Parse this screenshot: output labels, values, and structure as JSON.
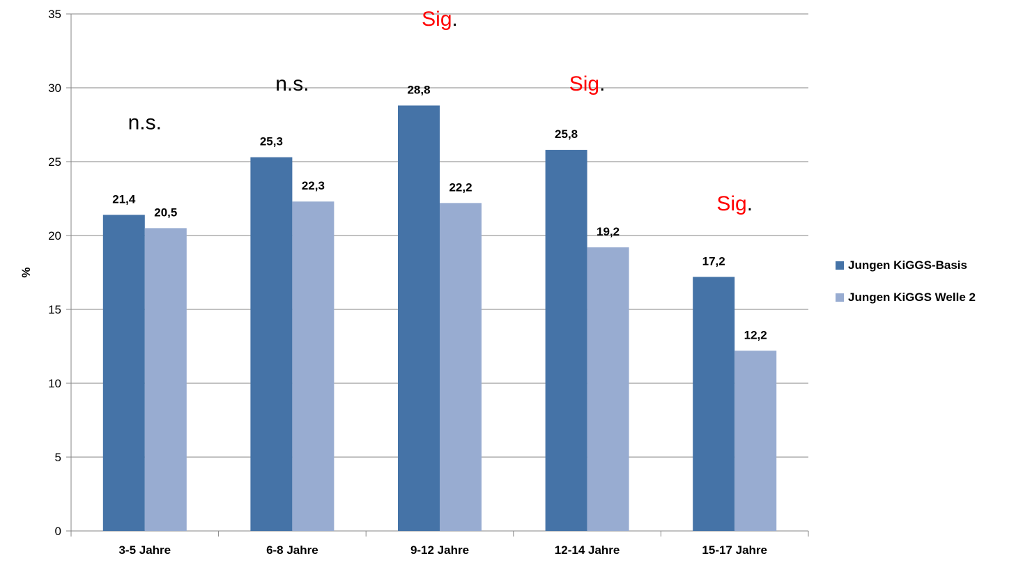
{
  "chart_data": {
    "type": "bar",
    "ylabel": "%",
    "ylim": [
      0,
      35
    ],
    "yticks": [
      0,
      5,
      10,
      15,
      20,
      25,
      30,
      35
    ],
    "grid": true,
    "legend_position": "right",
    "categories": [
      "3-5 Jahre",
      "6-8 Jahre",
      "9-12 Jahre",
      "12-14 Jahre",
      "15-17 Jahre"
    ],
    "series": [
      {
        "name": "Jungen KiGGS-Basis",
        "color": "#4573A7",
        "values": [
          21.4,
          25.3,
          28.8,
          25.8,
          17.2
        ],
        "labels": [
          "21,4",
          "25,3",
          "28,8",
          "25,8",
          "17,2"
        ]
      },
      {
        "name": "Jungen KiGGS Welle 2",
        "color": "#98ACD1",
        "values": [
          20.5,
          22.3,
          22.2,
          19.2,
          12.2
        ],
        "labels": [
          "20,5",
          "22,3",
          "22,2",
          "19,2",
          "12,2"
        ]
      }
    ],
    "annotations": [
      {
        "category": "3-5 Jahre",
        "main": "n.s.",
        "suffix": "",
        "main_color": "#000000",
        "level": 27.2
      },
      {
        "category": "6-8 Jahre",
        "main": "n.s.",
        "suffix": "",
        "main_color": "#000000",
        "level": 29.8
      },
      {
        "category": "9-12 Jahre",
        "main": "Sig",
        "suffix": ".",
        "main_color": "#FF0000",
        "level": 34.2
      },
      {
        "category": "12-14 Jahre",
        "main": "Sig",
        "suffix": ".",
        "main_color": "#FF0000",
        "level": 29.8
      },
      {
        "category": "15-17 Jahre",
        "main": "Sig",
        "suffix": ".",
        "main_color": "#FF0000",
        "level": 21.7
      }
    ]
  }
}
